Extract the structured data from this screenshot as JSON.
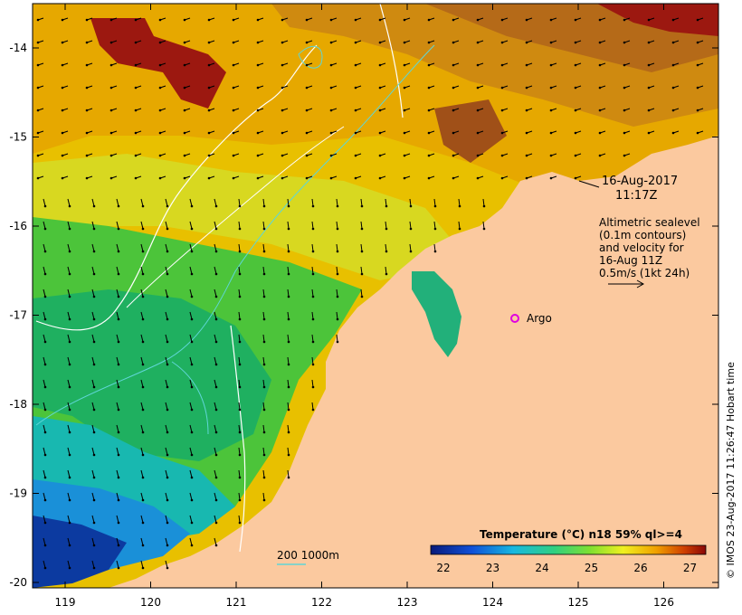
{
  "map": {
    "lon_ticks": [
      "119",
      "120",
      "121",
      "122",
      "123",
      "124",
      "125",
      "126"
    ],
    "lat_ticks": [
      "-14",
      "-15",
      "-16",
      "-17",
      "-18",
      "-19",
      "-20"
    ]
  },
  "annotations": {
    "date": "16-Aug-2017",
    "time": "11:17Z",
    "altimetry_lines": [
      "Altimetric sealevel",
      "(0.1m contours)",
      "and velocity for",
      "16-Aug 11Z",
      "0.5m/s (1kt 24h)"
    ],
    "argo_label": "Argo",
    "bathy_label": "200  1000m"
  },
  "colorbar": {
    "title": "Temperature (°C) n18 59% ql>=4",
    "ticks": [
      "22",
      "23",
      "24",
      "25",
      "26",
      "27"
    ]
  },
  "credit": "© IMOS 23-Aug-2017 11:26:47 Hobart time",
  "colors": {
    "land": "#fbc99f",
    "argo": "#e000e0",
    "contour": "#ffffff",
    "bathymetry": "#5fd6d6"
  }
}
